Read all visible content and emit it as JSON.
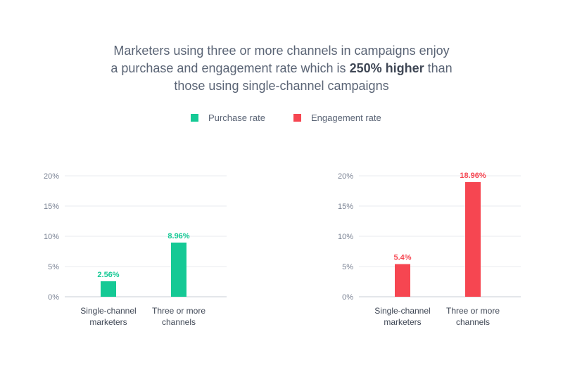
{
  "title": {
    "line1": "Marketers using three or more channels in campaigns enjoy",
    "line2_pre": "a purchase and engagement rate which is ",
    "line2_em": "250% higher",
    "line2_post": " than",
    "line3": "those using single-channel campaigns"
  },
  "legend": [
    {
      "label": "Purchase rate",
      "color": "#15c995"
    },
    {
      "label": "Engagement rate",
      "color": "#f64651"
    }
  ],
  "chart_data": [
    {
      "type": "bar",
      "categories": [
        [
          "Single-channel",
          "marketers"
        ],
        [
          "Three or more",
          "channels"
        ]
      ],
      "series": [
        {
          "name": "Purchase rate",
          "values": [
            2.56,
            8.96
          ],
          "color": "#15c995"
        }
      ],
      "value_labels": [
        "2.56%",
        "8.96%"
      ],
      "yticks": [
        "0%",
        "5%",
        "10%",
        "15%",
        "20%"
      ],
      "ylim": [
        0,
        20
      ]
    },
    {
      "type": "bar",
      "categories": [
        [
          "Single-channel",
          "marketers"
        ],
        [
          "Three or more",
          "channels"
        ]
      ],
      "series": [
        {
          "name": "Engagement rate",
          "values": [
            5.4,
            18.96
          ],
          "color": "#f64651"
        }
      ],
      "value_labels": [
        "5.4%",
        "18.96%"
      ],
      "yticks": [
        "0%",
        "5%",
        "10%",
        "15%",
        "20%"
      ],
      "ylim": [
        0,
        20
      ]
    }
  ]
}
